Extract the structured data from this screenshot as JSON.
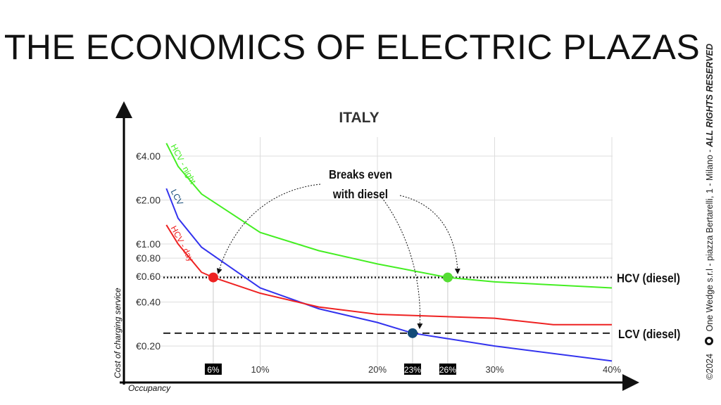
{
  "slide": {
    "title": "THE ECONOMICS OF ELECTRIC PLAZAS",
    "copyright": "©2024",
    "company": "One Wedge s.r.l - piazza Bertarelli, 1 - Milano - ",
    "rights": "ALL RIGHTS RESERVED"
  },
  "chart_data": {
    "type": "line",
    "title": "ITALY",
    "xlabel": "Occupancy",
    "ylabel": "Cost of charging service",
    "yscale": "log",
    "ylim": [
      0.15,
      5.2
    ],
    "xlim": [
      0,
      40
    ],
    "yticks": [
      {
        "v": 4,
        "label": "€4.00"
      },
      {
        "v": 2,
        "label": "€2.00"
      },
      {
        "v": 1,
        "label": "€1.00"
      },
      {
        "v": 0.8,
        "label": "€0.80"
      },
      {
        "v": 0.6,
        "label": "€0.60"
      },
      {
        "v": 0.4,
        "label": "€0.40"
      },
      {
        "v": 0.2,
        "label": "€0.20"
      }
    ],
    "xticks": [
      {
        "v": 10,
        "label": "10%"
      },
      {
        "v": 20,
        "label": "20%"
      },
      {
        "v": 30,
        "label": "30%"
      },
      {
        "v": 40,
        "label": "40%"
      }
    ],
    "series": [
      {
        "name": "HCV - night",
        "color": "#44ee22",
        "x": [
          2,
          3,
          5,
          10,
          15,
          20,
          26,
          30,
          40
        ],
        "y": [
          4.9,
          3.4,
          2.2,
          1.2,
          0.9,
          0.73,
          0.59,
          0.55,
          0.5
        ]
      },
      {
        "name": "LCV",
        "color": "#3333ee",
        "x": [
          2,
          3,
          5,
          10,
          15,
          20,
          23,
          30,
          40
        ],
        "y": [
          2.4,
          1.5,
          0.95,
          0.5,
          0.36,
          0.29,
          0.245,
          0.2,
          0.158
        ]
      },
      {
        "name": "HCV - day",
        "color": "#ee2222",
        "x": [
          2,
          3,
          5,
          6,
          10,
          15,
          20,
          30,
          35,
          40
        ],
        "y": [
          1.35,
          1.0,
          0.64,
          0.59,
          0.46,
          0.37,
          0.33,
          0.31,
          0.28,
          0.28
        ]
      }
    ],
    "references": [
      {
        "name": "HCV (diesel)",
        "value": 0.59,
        "style": "dotted"
      },
      {
        "name": "LCV (diesel)",
        "value": 0.245,
        "style": "dashed"
      }
    ],
    "breakeven": [
      {
        "x": 6,
        "y": 0.59,
        "label": "6%",
        "color": "#ee2222"
      },
      {
        "x": 23,
        "y": 0.245,
        "label": "23%",
        "color": "#124a78"
      },
      {
        "x": 26,
        "y": 0.59,
        "label": "26%",
        "color": "#55dd33"
      }
    ],
    "annotation": [
      "Breaks even",
      "with diesel"
    ]
  }
}
